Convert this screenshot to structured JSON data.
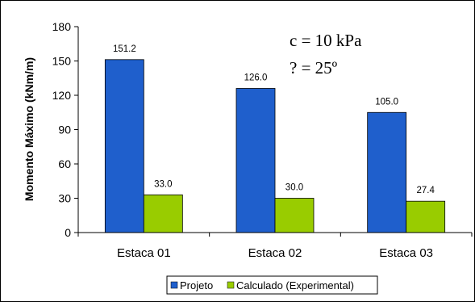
{
  "chart_data": {
    "type": "bar",
    "categories": [
      "Estaca 01",
      "Estaca 02",
      "Estaca 03"
    ],
    "series": [
      {
        "name": "Projeto",
        "values": [
          151.2,
          126.0,
          105.0
        ],
        "color": "#1f5fcc"
      },
      {
        "name": "Calculado (Experimental)",
        "values": [
          33.0,
          30.0,
          27.4
        ],
        "color": "#99cc00"
      }
    ],
    "data_labels": [
      [
        "151.2",
        "126.0",
        "105.0"
      ],
      [
        "33.0",
        "30.0",
        "27.4"
      ]
    ],
    "ylabel": "Momento Máximo (kNm/m)",
    "xlabel": "",
    "title": "",
    "ylim": [
      0,
      180
    ],
    "yticks": [
      0,
      30,
      60,
      90,
      120,
      150,
      180
    ],
    "grid": false,
    "legend_position": "bottom",
    "annotations": [
      "c = 10 kPa",
      "? = 25º"
    ]
  }
}
